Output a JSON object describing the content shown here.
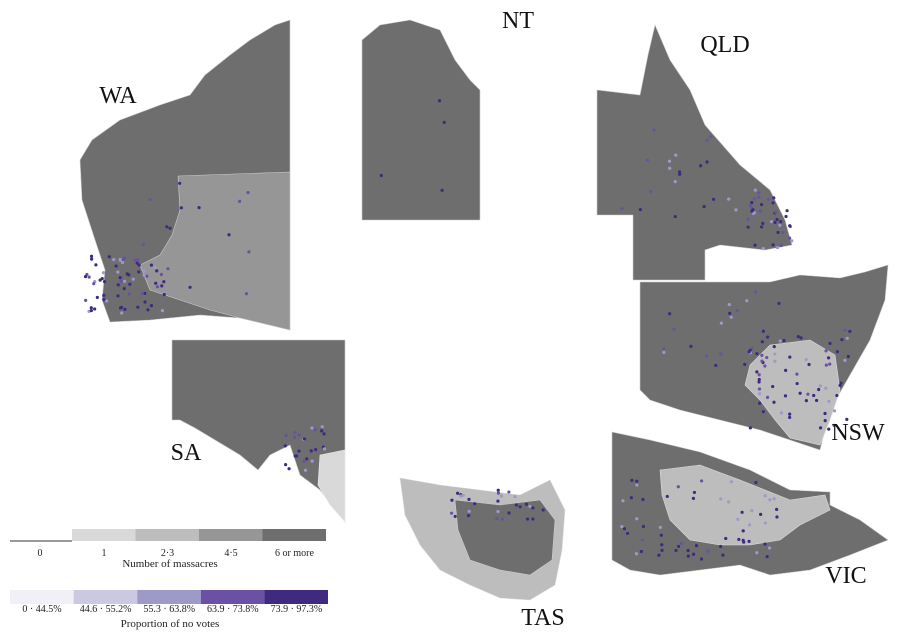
{
  "state_labels": [
    "WA",
    "NT",
    "QLD",
    "NSW",
    "SA",
    "TAS",
    "VIC"
  ],
  "legend_massacres": {
    "title": "Number of massacres",
    "items": [
      {
        "label": "0",
        "color": "#ffffff"
      },
      {
        "label": "1",
        "color": "#d9d9d9"
      },
      {
        "label": "2·3",
        "color": "#bdbdbd"
      },
      {
        "label": "4·5",
        "color": "#969696"
      },
      {
        "label": "6 or more",
        "color": "#6e6e6e"
      }
    ]
  },
  "legend_no_votes": {
    "title": "Proportion of no votes",
    "items": [
      {
        "label": "0 · 44.5%",
        "color": "#f2f0f7"
      },
      {
        "label": "44.6 · 55.2%",
        "color": "#cbc9e2"
      },
      {
        "label": "55.3 · 63.8%",
        "color": "#9e9ac8"
      },
      {
        "label": "63.9 · 73.8%",
        "color": "#6a51a3"
      },
      {
        "label": "73.9 · 97.3%",
        "color": "#3f2a80"
      }
    ]
  }
}
